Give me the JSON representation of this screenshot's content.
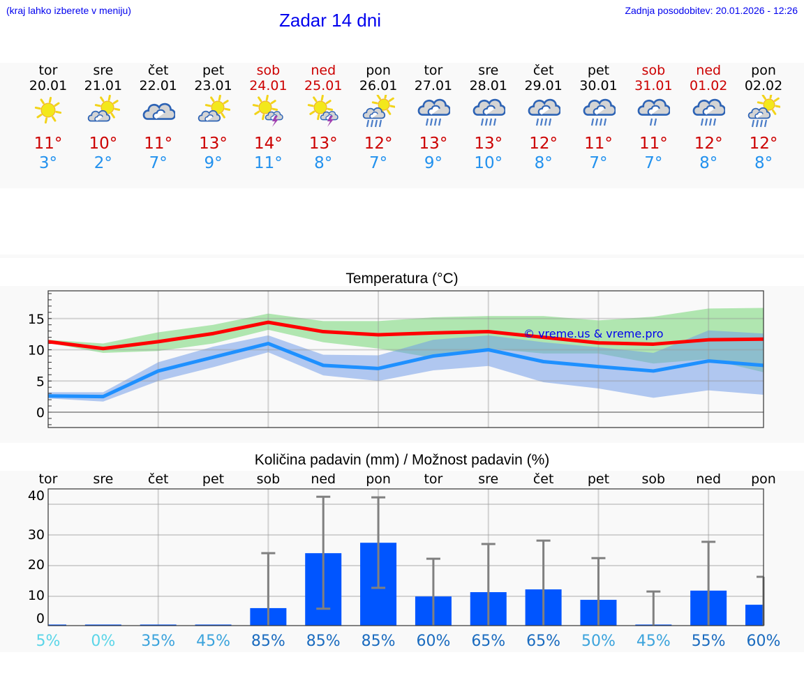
{
  "header": {
    "menu_hint": "(kraj lahko izberete v meniju)",
    "title": "Zadar 14 dni",
    "last_update": "Zadnja posodobitev: 20.01.2026 - 12:26"
  },
  "colors": {
    "link_blue": "#0000ee",
    "max_temp": "#cc0000",
    "min_temp": "#2291ee",
    "weekend": "#cc0000",
    "max_line": "#ff0000",
    "min_line": "#1e90ff",
    "max_band": "#aee9ae",
    "min_band": "#aec6f0",
    "bar": "#0055ff",
    "error_bar": "#808080"
  },
  "days": [
    {
      "name": "tor",
      "date": "20.01",
      "weekend": false,
      "icon": "sun-icon",
      "max": "11°",
      "min": "3°"
    },
    {
      "name": "sre",
      "date": "21.01",
      "weekend": false,
      "icon": "sun-cloud-icon",
      "max": "10°",
      "min": "2°"
    },
    {
      "name": "čet",
      "date": "22.01",
      "weekend": false,
      "icon": "cloudy-icon",
      "max": "11°",
      "min": "7°"
    },
    {
      "name": "pet",
      "date": "23.01",
      "weekend": false,
      "icon": "sun-cloud-icon",
      "max": "13°",
      "min": "9°"
    },
    {
      "name": "sob",
      "date": "24.01",
      "weekend": true,
      "icon": "sun-thunderstorm-icon",
      "max": "14°",
      "min": "11°"
    },
    {
      "name": "ned",
      "date": "25.01",
      "weekend": true,
      "icon": "sun-thunderstorm-icon",
      "max": "13°",
      "min": "8°"
    },
    {
      "name": "pon",
      "date": "26.01",
      "weekend": false,
      "icon": "sun-cloud-rain-icon",
      "max": "12°",
      "min": "7°"
    },
    {
      "name": "tor",
      "date": "27.01",
      "weekend": false,
      "icon": "cloudy-rain-icon",
      "max": "13°",
      "min": "9°"
    },
    {
      "name": "sre",
      "date": "28.01",
      "weekend": false,
      "icon": "cloudy-rain-icon",
      "max": "13°",
      "min": "10°"
    },
    {
      "name": "čet",
      "date": "29.01",
      "weekend": false,
      "icon": "cloudy-rain-icon",
      "max": "12°",
      "min": "8°"
    },
    {
      "name": "pet",
      "date": "30.01",
      "weekend": false,
      "icon": "cloudy-rain-icon",
      "max": "11°",
      "min": "7°"
    },
    {
      "name": "sob",
      "date": "31.01",
      "weekend": true,
      "icon": "cloudy-light-rain-icon",
      "max": "11°",
      "min": "7°"
    },
    {
      "name": "ned",
      "date": "01.02",
      "weekend": true,
      "icon": "cloudy-rain-icon",
      "max": "12°",
      "min": "8°"
    },
    {
      "name": "pon",
      "date": "02.02",
      "weekend": false,
      "icon": "sun-cloud-rain-icon",
      "max": "12°",
      "min": "8°"
    }
  ],
  "chart_data": [
    {
      "type": "line",
      "title": "Temperatura (°C)",
      "xlabel": "",
      "ylabel": "",
      "categories": [
        "20.01",
        "21.01",
        "22.01",
        "23.01",
        "24.01",
        "25.01",
        "26.01",
        "27.01",
        "28.01",
        "29.01",
        "30.01",
        "31.01",
        "01.02",
        "02.02"
      ],
      "yticks": [
        0,
        5,
        10,
        15
      ],
      "ylim": [
        -2.4,
        19.3
      ],
      "grid": true,
      "watermark": "© vreme.us & vreme.pro",
      "series": [
        {
          "name": "max",
          "color": "#ff0000",
          "values": [
            11.3,
            10.2,
            11.3,
            12.6,
            14.4,
            12.9,
            12.4,
            12.7,
            12.9,
            12.0,
            11.1,
            10.9,
            11.6,
            11.7
          ]
        },
        {
          "name": "max_band_upper",
          "color": "#aee9ae",
          "values": [
            11.6,
            11.0,
            12.8,
            14.0,
            15.8,
            14.6,
            14.6,
            15.2,
            15.4,
            15.4,
            14.7,
            15.3,
            16.6,
            16.7
          ]
        },
        {
          "name": "max_band_lower",
          "color": "#aee9ae",
          "values": [
            11.1,
            9.5,
            9.8,
            11.0,
            13.2,
            11.2,
            10.2,
            8.7,
            10.2,
            9.4,
            9.4,
            7.8,
            8.5,
            6.4
          ]
        },
        {
          "name": "min",
          "color": "#1e90ff",
          "values": [
            2.6,
            2.5,
            6.6,
            8.8,
            11.0,
            7.5,
            7.0,
            9.0,
            10.0,
            8.1,
            7.3,
            6.6,
            8.2,
            7.5
          ]
        },
        {
          "name": "min_band_upper",
          "color": "#aec6f0",
          "values": [
            3.2,
            3.2,
            8.0,
            10.5,
            12.3,
            9.2,
            9.1,
            11.6,
            12.3,
            11.2,
            10.4,
            9.5,
            13.1,
            12.6
          ]
        },
        {
          "name": "min_band_lower",
          "color": "#aec6f0",
          "values": [
            2.2,
            1.7,
            5.0,
            7.2,
            9.6,
            5.9,
            5.0,
            6.7,
            7.4,
            4.8,
            3.8,
            2.3,
            3.5,
            2.8
          ]
        }
      ]
    },
    {
      "type": "bar",
      "title": "Količina padavin (mm) / Možnost padavin (%)",
      "xlabel": "",
      "ylabel": "",
      "categories": [
        "tor",
        "sre",
        "čet",
        "pet",
        "sob",
        "ned",
        "pon",
        "tor",
        "sre",
        "čet",
        "pet",
        "sob",
        "ned",
        "pon"
      ],
      "yticks": [
        0,
        10,
        20,
        30,
        40
      ],
      "ylim": [
        0,
        40
      ],
      "grid": true,
      "series": [
        {
          "name": "Količina padavin (mm)",
          "color": "#0055ff",
          "values": [
            0,
            0,
            0,
            0,
            5.7,
            23.6,
            27.0,
            9.5,
            10.9,
            11.8,
            8.4,
            0.2,
            11.4,
            6.8
          ]
        },
        {
          "name": "error_upper (mm)",
          "color": "#808080",
          "values": [
            0,
            0,
            0,
            0,
            23.6,
            42.0,
            41.8,
            21.8,
            26.6,
            27.7,
            22.0,
            11.1,
            27.3,
            15.9
          ]
        },
        {
          "name": "error_lower (mm)",
          "color": "#808080",
          "values": [
            0,
            0,
            0,
            0,
            0,
            5.5,
            12.3,
            0,
            0,
            0,
            0,
            0,
            0,
            0
          ]
        }
      ],
      "probabilities": [
        "5%",
        "0%",
        "35%",
        "45%",
        "85%",
        "85%",
        "85%",
        "60%",
        "65%",
        "65%",
        "50%",
        "45%",
        "55%",
        "60%"
      ],
      "probability_colors": [
        "#5bd5e8",
        "#5bd5e8",
        "#3ba3dc",
        "#3ba3dc",
        "#1a6bbf",
        "#1a6bbf",
        "#1a6bbf",
        "#1a6bbf",
        "#1a6bbf",
        "#1a6bbf",
        "#3ba3dc",
        "#3ba3dc",
        "#1a6bbf",
        "#1a6bbf"
      ]
    }
  ]
}
